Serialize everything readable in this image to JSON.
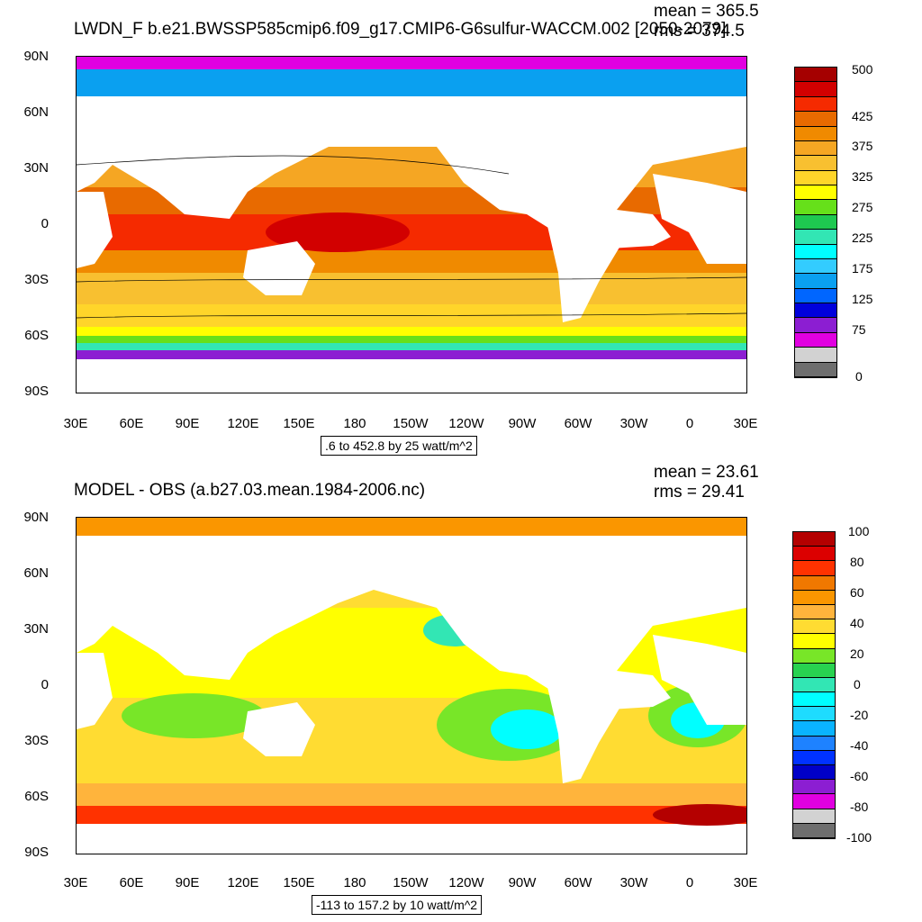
{
  "top_panel": {
    "title": "LWDN_F b.e21.BWSSP585cmip6.f09_g17.CMIP6-G6sulfur-WACCM.002 [2050-2079]",
    "mean_text": "mean = 365.5",
    "rms_text": "rms = 374.5",
    "range_text": ".6 to 452.8 by 25 watt/m^2",
    "colorbar_labels": [
      "500",
      "425",
      "375",
      "325",
      "275",
      "225",
      "175",
      "125",
      "75",
      "0"
    ]
  },
  "bottom_panel": {
    "title": "MODEL - OBS (a.b27.03.mean.1984-2006.nc)",
    "mean_text": "mean = 23.61",
    "rms_text": "rms = 29.41",
    "range_text": "-113 to 157.2 by 10 watt/m^2",
    "colorbar_labels": [
      "100",
      "80",
      "60",
      "40",
      "20",
      "0",
      "-20",
      "-40",
      "-60",
      "-80",
      "-100"
    ]
  },
  "lat_labels": [
    "90N",
    "60N",
    "30N",
    "0",
    "30S",
    "60S",
    "90S"
  ],
  "lon_labels": [
    "30E",
    "60E",
    "90E",
    "120E",
    "150E",
    "180",
    "150W",
    "120W",
    "90W",
    "60W",
    "30W",
    "0",
    "30E"
  ],
  "top_colors": [
    "#a50000",
    "#d20000",
    "#f52a00",
    "#e86a00",
    "#f08a00",
    "#f5a623",
    "#f8c030",
    "#ffd52a",
    "#ffff00",
    "#66e01a",
    "#1ec850",
    "#32e6b4",
    "#00ffff",
    "#33ccff",
    "#0aa0f0",
    "#0066ff",
    "#0000dc",
    "#8c1ed2",
    "#e100e1",
    "#d2d2d2",
    "#6e6e6e"
  ],
  "bottom_colors": [
    "#b40000",
    "#dc0000",
    "#ff3200",
    "#f07800",
    "#fa9600",
    "#ffb43c",
    "#ffdc32",
    "#ffff00",
    "#78e628",
    "#28d250",
    "#32e6b4",
    "#00ffff",
    "#1edcff",
    "#0ab4ff",
    "#1e82ff",
    "#0032ff",
    "#0000c8",
    "#8c1ed2",
    "#e100e1",
    "#d2d2d2",
    "#6e6e6e"
  ]
}
